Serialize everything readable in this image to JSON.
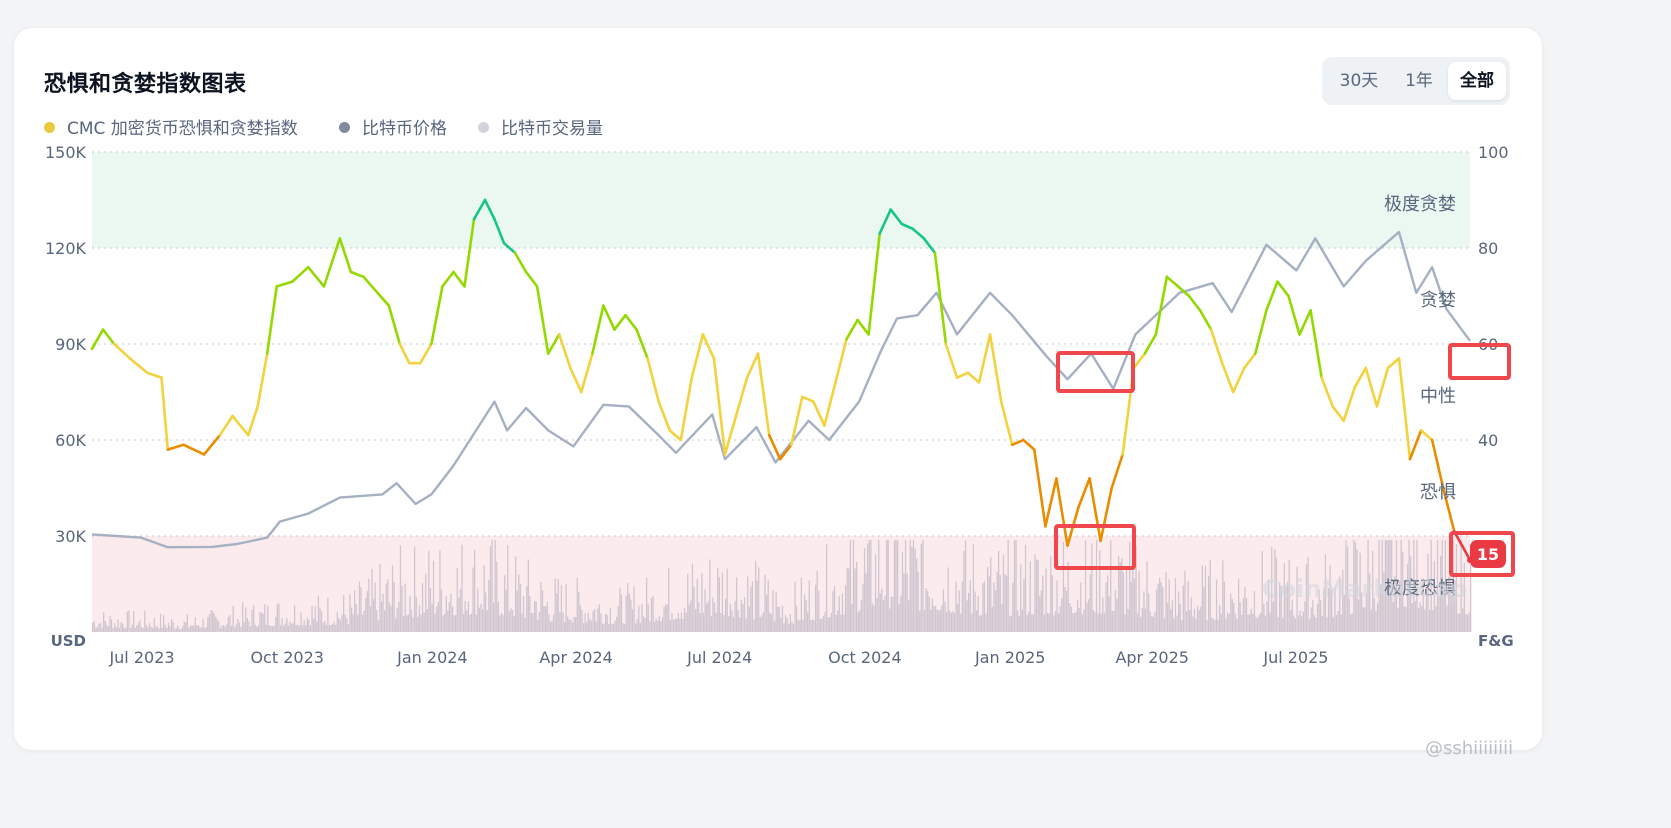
{
  "title": "恐惧和贪婪指数图表",
  "range_selector": {
    "options": [
      "30天",
      "1年",
      "全部"
    ],
    "selected": "全部"
  },
  "legend": [
    {
      "label": "CMC 加密货币恐惧和贪婪指数",
      "color": "#e8c93f"
    },
    {
      "label": "比特币价格",
      "color": "#808a9d"
    },
    {
      "label": "比特币交易量",
      "color": "#d1d4da"
    }
  ],
  "watermark_logo": "CoinMarketCap",
  "watermark_corner": "@sshiiiiiiii",
  "colors": {
    "extreme_greed": "#16c784",
    "greed": "#93d900",
    "neutral": "#f3d23e",
    "fear": "#ea8c00",
    "extreme_fear": "#ea3943",
    "btc_price": "#a6b0c3",
    "volume": "#cfc6d0",
    "highlight_box": "#f0474c"
  },
  "chart_data": {
    "type": "line",
    "x_tick_labels": [
      "Jul 2023",
      "Oct 2023",
      "Jan 2024",
      "Apr 2024",
      "Jul 2024",
      "Oct 2024",
      "Jan 2025",
      "Apr 2025",
      "Jul 2025"
    ],
    "x_start": "2023-07-01",
    "x_end": "2025-11-20",
    "left_axis": {
      "unit": "USD",
      "ticks": [
        "150K",
        "120K",
        "90K",
        "60K",
        "30K"
      ],
      "range": [
        0,
        150000
      ]
    },
    "right_axis": {
      "unit": "F&G",
      "ticks": [
        "100",
        "80",
        "60",
        "40"
      ],
      "range": [
        0,
        100
      ]
    },
    "zones": [
      {
        "label": "极度贪婪",
        "from": 80,
        "to": 100
      },
      {
        "label": "贪婪",
        "from": 60,
        "to": 80
      },
      {
        "label": "中性",
        "from": 40,
        "to": 60
      },
      {
        "label": "恐惧",
        "from": 20,
        "to": 40
      },
      {
        "label": "极度恐惧",
        "from": 0,
        "to": 20
      }
    ],
    "current_value": "15",
    "fear_greed_series": {
      "name": "CMC 加密货币恐惧和贪婪指数",
      "points": [
        [
          "2023-07-01",
          59
        ],
        [
          "2023-07-08",
          63
        ],
        [
          "2023-07-15",
          60
        ],
        [
          "2023-07-25",
          57
        ],
        [
          "2023-08-05",
          54
        ],
        [
          "2023-08-14",
          53
        ],
        [
          "2023-08-18",
          38
        ],
        [
          "2023-08-28",
          39
        ],
        [
          "2023-09-10",
          37
        ],
        [
          "2023-09-20",
          41
        ],
        [
          "2023-09-28",
          45
        ],
        [
          "2023-10-08",
          41
        ],
        [
          "2023-10-14",
          47
        ],
        [
          "2023-10-20",
          58
        ],
        [
          "2023-10-26",
          72
        ],
        [
          "2023-11-05",
          73
        ],
        [
          "2023-11-15",
          76
        ],
        [
          "2023-11-25",
          72
        ],
        [
          "2023-12-05",
          82
        ],
        [
          "2023-12-12",
          75
        ],
        [
          "2023-12-20",
          74
        ],
        [
          "2023-12-28",
          71
        ],
        [
          "2024-01-05",
          68
        ],
        [
          "2024-01-12",
          60
        ],
        [
          "2024-01-18",
          56
        ],
        [
          "2024-01-25",
          56
        ],
        [
          "2024-02-01",
          60
        ],
        [
          "2024-02-08",
          72
        ],
        [
          "2024-02-15",
          75
        ],
        [
          "2024-02-22",
          72
        ],
        [
          "2024-02-28",
          86
        ],
        [
          "2024-03-06",
          90
        ],
        [
          "2024-03-12",
          86
        ],
        [
          "2024-03-18",
          81
        ],
        [
          "2024-03-25",
          79
        ],
        [
          "2024-04-01",
          75
        ],
        [
          "2024-04-08",
          72
        ],
        [
          "2024-04-15",
          58
        ],
        [
          "2024-04-22",
          62
        ],
        [
          "2024-04-29",
          55
        ],
        [
          "2024-05-06",
          50
        ],
        [
          "2024-05-13",
          58
        ],
        [
          "2024-05-20",
          68
        ],
        [
          "2024-05-27",
          63
        ],
        [
          "2024-06-03",
          66
        ],
        [
          "2024-06-10",
          63
        ],
        [
          "2024-06-17",
          57
        ],
        [
          "2024-06-24",
          48
        ],
        [
          "2024-07-01",
          42
        ],
        [
          "2024-07-08",
          40
        ],
        [
          "2024-07-15",
          53
        ],
        [
          "2024-07-22",
          62
        ],
        [
          "2024-07-29",
          57
        ],
        [
          "2024-08-05",
          37
        ],
        [
          "2024-08-12",
          45
        ],
        [
          "2024-08-19",
          53
        ],
        [
          "2024-08-26",
          58
        ],
        [
          "2024-09-02",
          41
        ],
        [
          "2024-09-09",
          36
        ],
        [
          "2024-09-16",
          39
        ],
        [
          "2024-09-23",
          49
        ],
        [
          "2024-09-30",
          48
        ],
        [
          "2024-10-07",
          43
        ],
        [
          "2024-10-14",
          52
        ],
        [
          "2024-10-21",
          61
        ],
        [
          "2024-10-28",
          65
        ],
        [
          "2024-11-04",
          62
        ],
        [
          "2024-11-11",
          83
        ],
        [
          "2024-11-18",
          88
        ],
        [
          "2024-11-25",
          85
        ],
        [
          "2024-12-02",
          84
        ],
        [
          "2024-12-09",
          82
        ],
        [
          "2024-12-16",
          79
        ],
        [
          "2024-12-23",
          60
        ],
        [
          "2024-12-30",
          53
        ],
        [
          "2025-01-06",
          54
        ],
        [
          "2025-01-13",
          52
        ],
        [
          "2025-01-20",
          62
        ],
        [
          "2025-01-27",
          48
        ],
        [
          "2025-02-03",
          39
        ],
        [
          "2025-02-10",
          40
        ],
        [
          "2025-02-17",
          38
        ],
        [
          "2025-02-24",
          22
        ],
        [
          "2025-03-03",
          32
        ],
        [
          "2025-03-10",
          18
        ],
        [
          "2025-03-17",
          26
        ],
        [
          "2025-03-24",
          32
        ],
        [
          "2025-03-31",
          19
        ],
        [
          "2025-04-07",
          30
        ],
        [
          "2025-04-14",
          37
        ],
        [
          "2025-04-21",
          55
        ],
        [
          "2025-04-28",
          58
        ],
        [
          "2025-05-05",
          62
        ],
        [
          "2025-05-12",
          74
        ],
        [
          "2025-05-19",
          72
        ],
        [
          "2025-05-26",
          70
        ],
        [
          "2025-06-02",
          67
        ],
        [
          "2025-06-09",
          63
        ],
        [
          "2025-06-16",
          56
        ],
        [
          "2025-06-23",
          50
        ],
        [
          "2025-06-30",
          55
        ],
        [
          "2025-07-07",
          58
        ],
        [
          "2025-07-14",
          67
        ],
        [
          "2025-07-21",
          73
        ],
        [
          "2025-07-28",
          70
        ],
        [
          "2025-08-04",
          62
        ],
        [
          "2025-08-11",
          67
        ],
        [
          "2025-08-18",
          53
        ],
        [
          "2025-08-25",
          47
        ],
        [
          "2025-09-01",
          44
        ],
        [
          "2025-09-08",
          51
        ],
        [
          "2025-09-15",
          55
        ],
        [
          "2025-09-22",
          47
        ],
        [
          "2025-09-29",
          55
        ],
        [
          "2025-10-06",
          57
        ],
        [
          "2025-10-13",
          36
        ],
        [
          "2025-10-20",
          42
        ],
        [
          "2025-10-27",
          40
        ],
        [
          "2025-11-03",
          30
        ],
        [
          "2025-11-10",
          21
        ],
        [
          "2025-11-15",
          18
        ],
        [
          "2025-11-20",
          15
        ]
      ]
    },
    "btc_price_series": {
      "name": "比特币价格",
      "points": [
        [
          "2023-07-01",
          30500
        ],
        [
          "2023-08-01",
          29500
        ],
        [
          "2023-08-18",
          26500
        ],
        [
          "2023-09-15",
          26600
        ],
        [
          "2023-10-01",
          27500
        ],
        [
          "2023-10-20",
          29500
        ],
        [
          "2023-10-28",
          34500
        ],
        [
          "2023-11-15",
          37000
        ],
        [
          "2023-12-05",
          42000
        ],
        [
          "2024-01-01",
          43000
        ],
        [
          "2024-01-10",
          46500
        ],
        [
          "2024-01-22",
          40000
        ],
        [
          "2024-02-01",
          43000
        ],
        [
          "2024-02-15",
          52000
        ],
        [
          "2024-02-28",
          62000
        ],
        [
          "2024-03-12",
          72000
        ],
        [
          "2024-03-20",
          63000
        ],
        [
          "2024-04-01",
          70000
        ],
        [
          "2024-04-15",
          63000
        ],
        [
          "2024-05-01",
          58000
        ],
        [
          "2024-05-20",
          71000
        ],
        [
          "2024-06-05",
          70500
        ],
        [
          "2024-06-25",
          61000
        ],
        [
          "2024-07-05",
          56000
        ],
        [
          "2024-07-28",
          68000
        ],
        [
          "2024-08-05",
          54000
        ],
        [
          "2024-08-25",
          64000
        ],
        [
          "2024-09-06",
          53000
        ],
        [
          "2024-09-27",
          66000
        ],
        [
          "2024-10-10",
          60000
        ],
        [
          "2024-10-29",
          72000
        ],
        [
          "2024-11-12",
          88000
        ],
        [
          "2024-11-22",
          98000
        ],
        [
          "2024-12-05",
          99000
        ],
        [
          "2024-12-17",
          106000
        ],
        [
          "2024-12-30",
          93000
        ],
        [
          "2025-01-20",
          106000
        ],
        [
          "2025-02-03",
          99000
        ],
        [
          "2025-02-25",
          86000
        ],
        [
          "2025-03-10",
          79000
        ],
        [
          "2025-03-25",
          87000
        ],
        [
          "2025-04-08",
          76000
        ],
        [
          "2025-04-22",
          93000
        ],
        [
          "2025-05-20",
          106000
        ],
        [
          "2025-06-10",
          109000
        ],
        [
          "2025-06-22",
          100000
        ],
        [
          "2025-07-14",
          121000
        ],
        [
          "2025-08-02",
          113000
        ],
        [
          "2025-08-14",
          123000
        ],
        [
          "2025-09-01",
          108000
        ],
        [
          "2025-09-15",
          116000
        ],
        [
          "2025-10-06",
          125000
        ],
        [
          "2025-10-17",
          106000
        ],
        [
          "2025-10-27",
          114000
        ],
        [
          "2025-11-05",
          101000
        ],
        [
          "2025-11-20",
          91000
        ]
      ]
    },
    "volume_series": {
      "name": "比特币交易量",
      "relative_points": [
        [
          "2023-07-01",
          0.08
        ],
        [
          "2023-09-01",
          0.06
        ],
        [
          "2023-10-25",
          0.12
        ],
        [
          "2023-12-10",
          0.14
        ],
        [
          "2024-01-11",
          0.28
        ],
        [
          "2024-03-05",
          0.35
        ],
        [
          "2024-04-15",
          0.2
        ],
        [
          "2024-06-01",
          0.15
        ],
        [
          "2024-08-05",
          0.32
        ],
        [
          "2024-09-15",
          0.15
        ],
        [
          "2024-11-12",
          0.48
        ],
        [
          "2024-12-05",
          0.42
        ],
        [
          "2025-01-20",
          0.3
        ],
        [
          "2025-03-03",
          0.34
        ],
        [
          "2025-04-07",
          0.36
        ],
        [
          "2025-05-20",
          0.22
        ],
        [
          "2025-07-14",
          0.28
        ],
        [
          "2025-08-14",
          0.25
        ],
        [
          "2025-10-10",
          0.5
        ],
        [
          "2025-11-20",
          0.33
        ]
      ]
    }
  }
}
